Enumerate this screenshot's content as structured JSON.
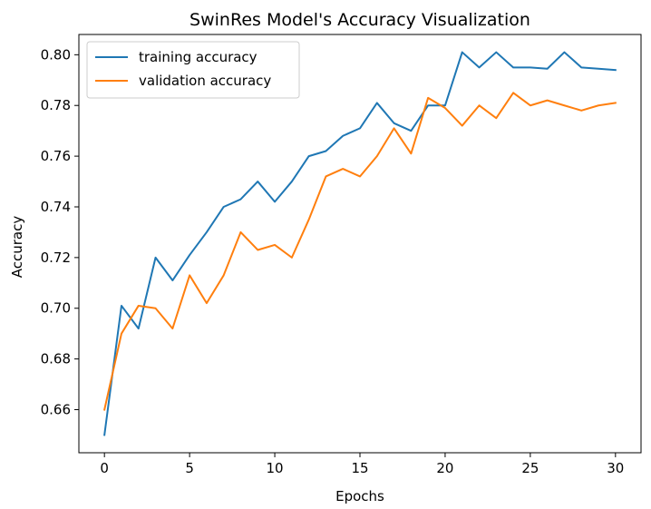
{
  "chart_data": {
    "type": "line",
    "title": "SwinRes Model's Accuracy Visualization",
    "xlabel": "Epochs",
    "ylabel": "Accuracy",
    "xlim": [
      -1.5,
      31.5
    ],
    "ylim": [
      0.643,
      0.808
    ],
    "xticks": [
      0,
      5,
      10,
      15,
      20,
      25,
      30
    ],
    "xtick_labels": [
      "0",
      "5",
      "10",
      "15",
      "20",
      "25",
      "30"
    ],
    "yticks": [
      0.66,
      0.68,
      0.7,
      0.72,
      0.74,
      0.76,
      0.78,
      0.8
    ],
    "ytick_labels": [
      "0.66",
      "0.68",
      "0.70",
      "0.72",
      "0.74",
      "0.76",
      "0.78",
      "0.80"
    ],
    "grid": false,
    "legend_position": "top-left",
    "x": [
      0,
      1,
      2,
      3,
      4,
      5,
      6,
      7,
      8,
      9,
      10,
      11,
      12,
      13,
      14,
      15,
      16,
      17,
      18,
      19,
      20,
      21,
      22,
      23,
      24,
      25,
      26,
      27,
      28,
      29,
      30
    ],
    "series": [
      {
        "name": "training accuracy",
        "color": "#1f77b4",
        "values": [
          0.65,
          0.701,
          0.692,
          0.72,
          0.711,
          0.721,
          0.73,
          0.74,
          0.743,
          0.75,
          0.742,
          0.75,
          0.76,
          0.762,
          0.768,
          0.771,
          0.781,
          0.773,
          0.77,
          0.78,
          0.78,
          0.801,
          0.795,
          0.801,
          0.795,
          0.795,
          0.7945,
          0.801,
          0.795,
          0.7945,
          0.794
        ]
      },
      {
        "name": "validation accuracy",
        "color": "#ff7f0e",
        "values": [
          0.66,
          0.69,
          0.701,
          0.7,
          0.692,
          0.713,
          0.702,
          0.713,
          0.73,
          0.723,
          0.725,
          0.72,
          0.735,
          0.752,
          0.755,
          0.752,
          0.76,
          0.771,
          0.761,
          0.783,
          0.779,
          0.772,
          0.78,
          0.775,
          0.785,
          0.78,
          0.782,
          0.78,
          0.778,
          0.78,
          0.781
        ]
      }
    ]
  }
}
